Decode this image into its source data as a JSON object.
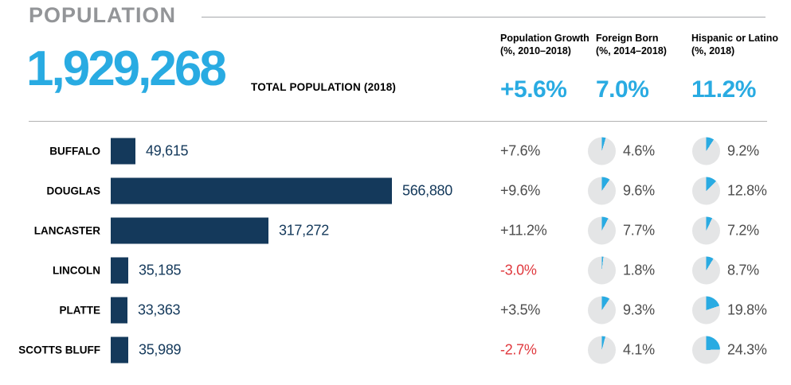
{
  "colors": {
    "accent": "#29ABE2",
    "navy": "#14395B",
    "negative_red": "#E0393E",
    "pie_gray": "#E4E5E6",
    "title_gray": "#939598"
  },
  "header": {
    "title": "POPULATION",
    "total_value": "1,929,268",
    "total_label": "TOTAL POPULATION (2018)",
    "columns": [
      {
        "label_line1": "Population Growth",
        "label_line2": "(%, 2010–2018)",
        "summary": "+5.6%"
      },
      {
        "label_line1": "Foreign Born",
        "label_line2": "(%, 2014–2018)",
        "summary": "7.0%"
      },
      {
        "label_line1": "Hispanic or Latino",
        "label_line2": "(%, 2018)",
        "summary": "11.2%"
      }
    ]
  },
  "chart_data": {
    "type": "bar",
    "orientation": "horizontal",
    "title": "POPULATION",
    "categories": [
      "Buffalo",
      "Douglas",
      "Lancaster",
      "Lincoln",
      "Platte",
      "Scotts Bluff"
    ],
    "series": [
      {
        "name": "Total Population (2018)",
        "values": [
          49615,
          566880,
          317272,
          35185,
          33363,
          35989
        ]
      },
      {
        "name": "Population Growth (%, 2010–2018)",
        "values": [
          7.6,
          9.6,
          11.2,
          -3.0,
          3.5,
          -2.7
        ]
      },
      {
        "name": "Foreign Born (%, 2014–2018)",
        "values": [
          4.6,
          9.6,
          7.7,
          1.8,
          9.3,
          4.1
        ]
      },
      {
        "name": "Hispanic or Latino (%, 2018)",
        "values": [
          9.2,
          12.8,
          7.2,
          8.7,
          19.8,
          24.3
        ]
      }
    ],
    "totals": {
      "population_2018": 1929268,
      "growth_pct": 5.6,
      "foreign_born_pct": 7.0,
      "hispanic_pct": 11.2
    },
    "xlim": [
      0,
      566880
    ],
    "bar_color": "#14395B",
    "legend_position": "none",
    "grid": false
  },
  "rows": [
    {
      "county": "BUFFALO",
      "population": 49615,
      "population_label": "49,615",
      "growth": "+7.6%",
      "foreign_born_pct": 4.6,
      "foreign_born_label": "4.6%",
      "hispanic_pct": 9.2,
      "hispanic_label": "9.2%"
    },
    {
      "county": "DOUGLAS",
      "population": 566880,
      "population_label": "566,880",
      "growth": "+9.6%",
      "foreign_born_pct": 9.6,
      "foreign_born_label": "9.6%",
      "hispanic_pct": 12.8,
      "hispanic_label": "12.8%"
    },
    {
      "county": "LANCASTER",
      "population": 317272,
      "population_label": "317,272",
      "growth": "+11.2%",
      "foreign_born_pct": 7.7,
      "foreign_born_label": "7.7%",
      "hispanic_pct": 7.2,
      "hispanic_label": "7.2%"
    },
    {
      "county": "LINCOLN",
      "population": 35185,
      "population_label": "35,185",
      "growth": "-3.0%",
      "foreign_born_pct": 1.8,
      "foreign_born_label": "1.8%",
      "hispanic_pct": 8.7,
      "hispanic_label": "8.7%"
    },
    {
      "county": "PLATTE",
      "population": 33363,
      "population_label": "33,363",
      "growth": "+3.5%",
      "foreign_born_pct": 9.3,
      "foreign_born_label": "9.3%",
      "hispanic_pct": 19.8,
      "hispanic_label": "19.8%"
    },
    {
      "county": "SCOTTS BLUFF",
      "population": 35989,
      "population_label": "35,989",
      "growth": "-2.7%",
      "foreign_born_pct": 4.1,
      "foreign_born_label": "4.1%",
      "hispanic_pct": 24.3,
      "hispanic_label": "24.3%"
    }
  ]
}
